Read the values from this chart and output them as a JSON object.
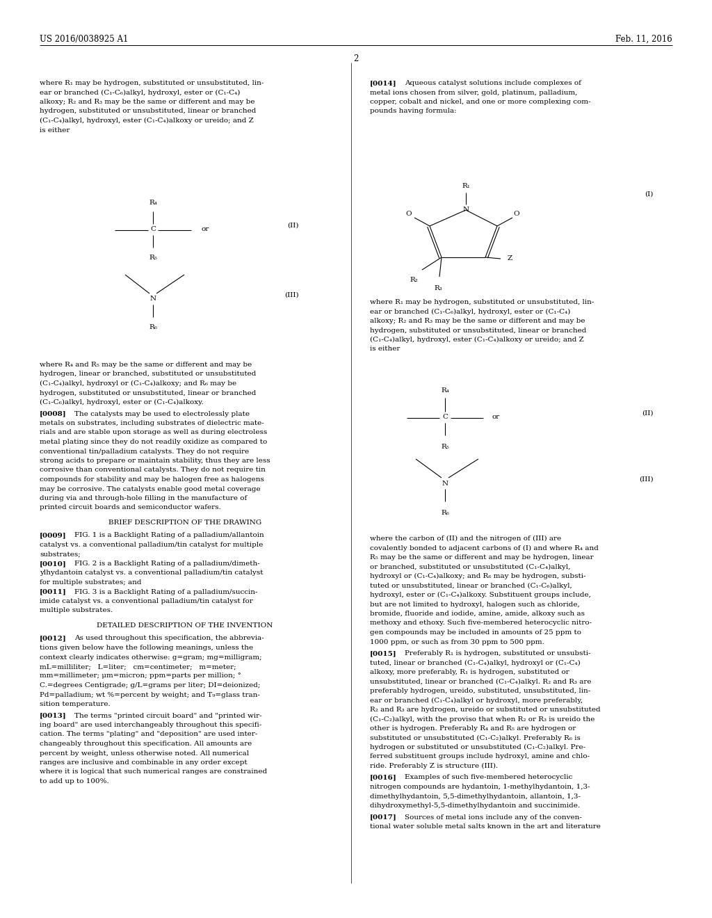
{
  "background_color": "#ffffff",
  "patent_number": "US 2016/0038925 A1",
  "date": "Feb. 11, 2016",
  "page_number": "2",
  "font_size": 7.5,
  "header_font_size": 8.5
}
